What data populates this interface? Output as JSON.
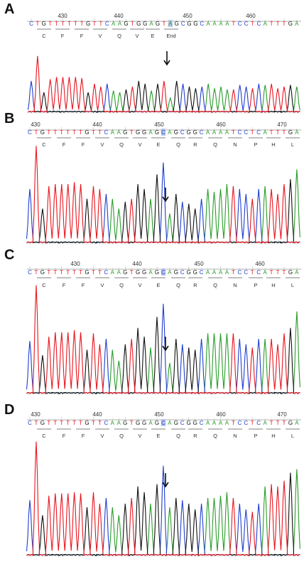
{
  "colors": {
    "A": "#2a9d2a",
    "C": "#1f3fd0",
    "G": "#111111",
    "T": "#e8151f",
    "tick": "#888888",
    "highlight": "#b9c6ea"
  },
  "chart_data": [
    {
      "type": "line",
      "panel": "A",
      "sequence": "CTGTTTTTTGTTCAAGTGGAGTAGCGGCAAAATCCTCATTTGA",
      "ruler": [
        "430",
        "440",
        "450",
        "460"
      ],
      "amino_acids": [
        "C",
        "F",
        "F",
        "V",
        "Q",
        "V",
        "E",
        "End"
      ],
      "highlight_index": 22
    },
    {
      "type": "line",
      "panel": "B",
      "sequence": "CTGTTTTTTGTTCAAGTGGAGCAGCGGCAAAATCCTCATTTGA",
      "ruler": [
        "430",
        "440",
        "450",
        "460",
        "470"
      ],
      "amino_acids": [
        "C",
        "F",
        "F",
        "V",
        "Q",
        "V",
        "E",
        "Q",
        "R",
        "Q",
        "N",
        "P",
        "H",
        "L"
      ],
      "highlight_index": 21
    },
    {
      "type": "line",
      "panel": "C",
      "sequence": "CTGTTTTTTGTTCAAGTGGAGCAGCGGCAAAATCCTCATTTGA",
      "ruler": [
        "430",
        "440",
        "450",
        "460"
      ],
      "amino_acids": [
        "C",
        "F",
        "F",
        "V",
        "Q",
        "V",
        "E",
        "Q",
        "R",
        "Q",
        "N",
        "P",
        "H",
        "L"
      ],
      "highlight_index": 21
    },
    {
      "type": "line",
      "panel": "D",
      "sequence": "CTGTTTTTTGTTCAAGTGGAGCAGCGGCAAAATCCTCATTTGA",
      "ruler": [
        "430",
        "440",
        "450",
        "460",
        "470"
      ],
      "amino_acids": [
        "C",
        "F",
        "F",
        "V",
        "Q",
        "V",
        "E",
        "Q",
        "R",
        "Q",
        "N",
        "P",
        "H",
        "L"
      ],
      "highlight_index": 21
    }
  ]
}
